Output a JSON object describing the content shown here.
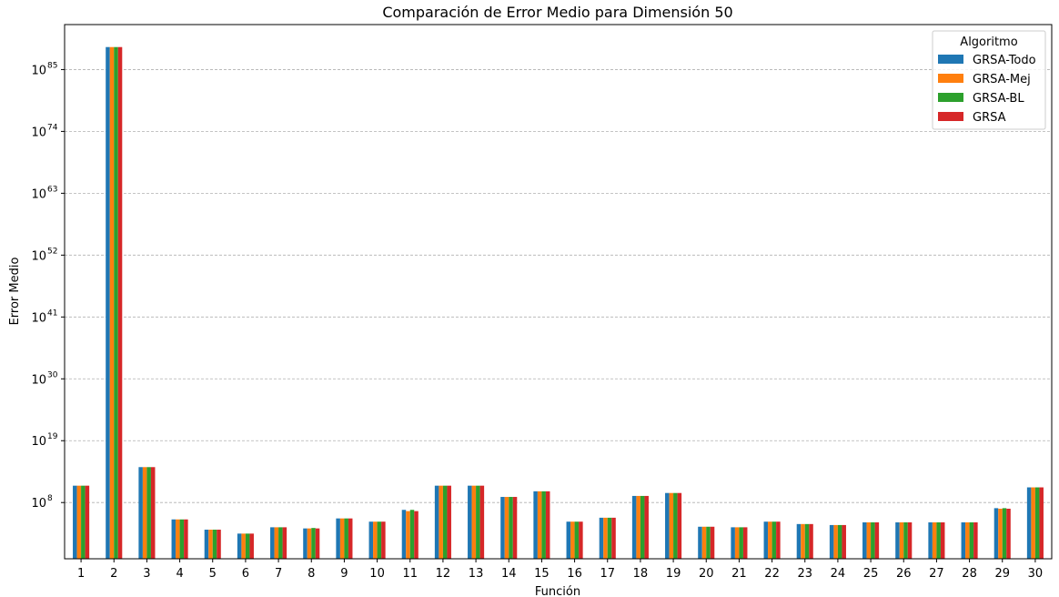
{
  "chart_data": {
    "type": "bar",
    "title": "Comparación de Error Medio para Dimensión 50",
    "xlabel": "Función",
    "ylabel": "Error Medio",
    "yscale": "log",
    "ylim_exponent": [
      -2,
      93
    ],
    "yticks": [
      {
        "base": "10",
        "exp": "8",
        "value_exp": 8
      },
      {
        "base": "10",
        "exp": "19",
        "value_exp": 19
      },
      {
        "base": "10",
        "exp": "30",
        "value_exp": 30
      },
      {
        "base": "10",
        "exp": "41",
        "value_exp": 41
      },
      {
        "base": "10",
        "exp": "52",
        "value_exp": 52
      },
      {
        "base": "10",
        "exp": "63",
        "value_exp": 63
      },
      {
        "base": "10",
        "exp": "74",
        "value_exp": 74
      },
      {
        "base": "10",
        "exp": "85",
        "value_exp": 85
      }
    ],
    "grid": "horizontal-dashed",
    "legend": {
      "title": "Algoritmo",
      "placement": "top-right"
    },
    "categories": [
      "1",
      "2",
      "3",
      "4",
      "5",
      "6",
      "7",
      "8",
      "9",
      "10",
      "11",
      "12",
      "13",
      "14",
      "15",
      "16",
      "17",
      "18",
      "19",
      "20",
      "21",
      "22",
      "23",
      "24",
      "25",
      "26",
      "27",
      "28",
      "29",
      "30"
    ],
    "series": [
      {
        "name": "GRSA-Todo",
        "color": "#1f77b4",
        "values": [
          100000000000.0,
          1e+89,
          200000000000000.0,
          100000.0,
          1500.0,
          300.0,
          4000.0,
          2500.0,
          150000.0,
          40000.0,
          5000000.0,
          100000000000.0,
          100000000000.0,
          1000000000.0,
          10000000000.0,
          40000.0,
          200000.0,
          1500000000.0,
          5000000000.0,
          5000.0,
          4000.0,
          40000.0,
          15000.0,
          10000.0,
          30000.0,
          30000.0,
          30000.0,
          30000.0,
          10000000.0,
          50000000000.0
        ]
      },
      {
        "name": "GRSA-Mej",
        "color": "#ff7f0e",
        "values": [
          100000000000.0,
          1e+89,
          200000000000000.0,
          100000.0,
          1500.0,
          300.0,
          4000.0,
          2500.0,
          150000.0,
          40000.0,
          3000000.0,
          100000000000.0,
          100000000000.0,
          1000000000.0,
          10000000000.0,
          40000.0,
          200000.0,
          1500000000.0,
          5000000000.0,
          5000.0,
          4000.0,
          40000.0,
          15000.0,
          10000.0,
          30000.0,
          30000.0,
          30000.0,
          30000.0,
          8000000.0,
          50000000000.0
        ]
      },
      {
        "name": "GRSA-BL",
        "color": "#2ca02c",
        "values": [
          100000000000.0,
          1e+89,
          200000000000000.0,
          100000.0,
          1500.0,
          300.0,
          4000.0,
          3000.0,
          150000.0,
          40000.0,
          5000000.0,
          100000000000.0,
          100000000000.0,
          1000000000.0,
          10000000000.0,
          40000.0,
          200000.0,
          1500000000.0,
          5000000000.0,
          5000.0,
          4000.0,
          40000.0,
          15000.0,
          10000.0,
          30000.0,
          30000.0,
          30000.0,
          30000.0,
          10000000.0,
          50000000000.0
        ]
      },
      {
        "name": "GRSA",
        "color": "#d62728",
        "values": [
          100000000000.0,
          1e+89,
          200000000000000.0,
          100000.0,
          1500.0,
          300.0,
          4000.0,
          2500.0,
          150000.0,
          40000.0,
          3000000.0,
          100000000000.0,
          100000000000.0,
          1000000000.0,
          10000000000.0,
          40000.0,
          200000.0,
          1500000000.0,
          5000000000.0,
          5000.0,
          4000.0,
          40000.0,
          15000.0,
          10000.0,
          30000.0,
          30000.0,
          30000.0,
          30000.0,
          8000000.0,
          50000000000.0
        ]
      }
    ]
  }
}
